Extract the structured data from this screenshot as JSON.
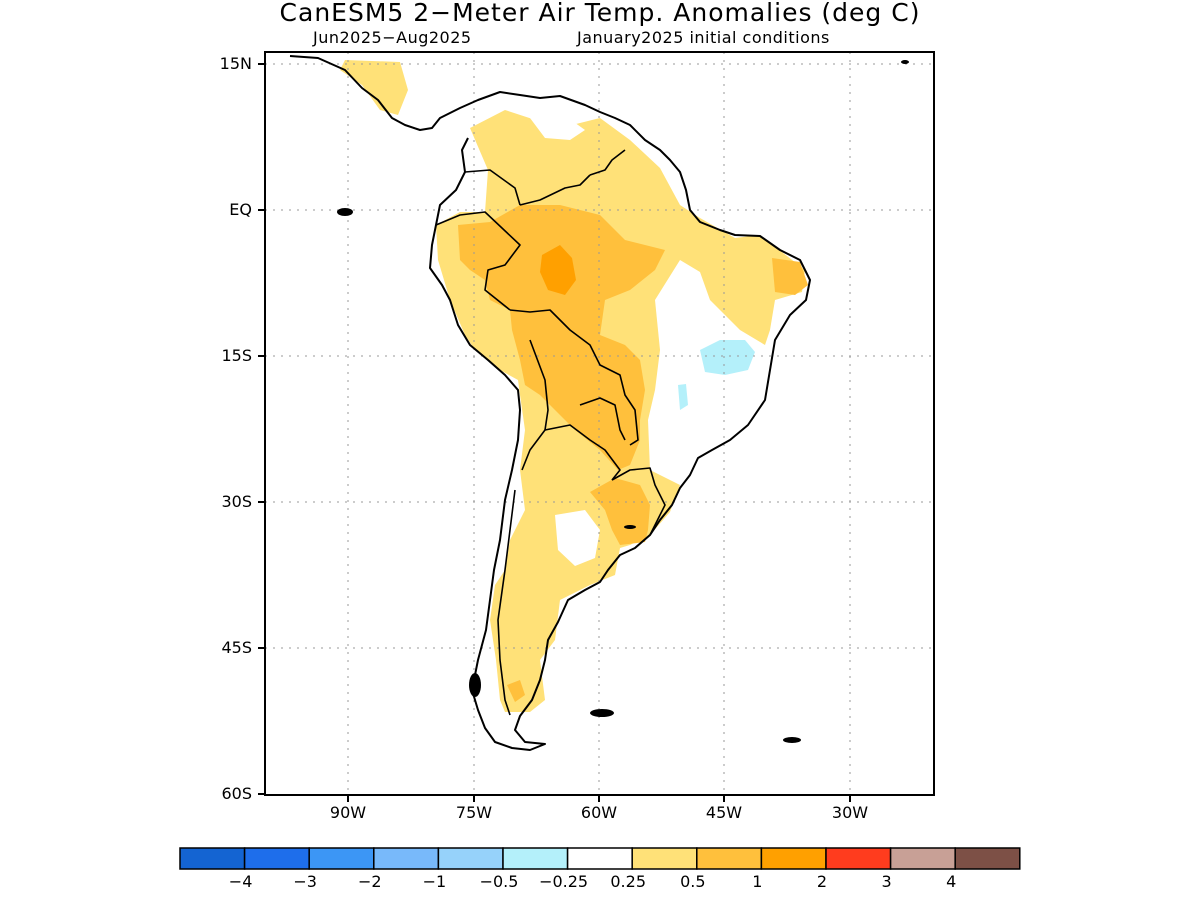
{
  "header": {
    "title": "CanESM5 2−Meter Air Temp. Anomalies (deg C)",
    "period": "Jun2025−Aug2025",
    "init": "January2025 initial conditions"
  },
  "map": {
    "lat_labels": [
      "15N",
      "EQ",
      "15S",
      "30S",
      "45S",
      "60S"
    ],
    "lon_labels": [
      "90W",
      "75W",
      "60W",
      "45W",
      "30W"
    ],
    "extent": {
      "lon": [
        -100,
        -20
      ],
      "lat": [
        -60,
        16
      ]
    },
    "grid": "dotted",
    "regions": [
      {
        "area": "Amazon basin / Bolivia",
        "class": "1 to 2"
      },
      {
        "area": "Northwest South America, Andes, Argentina",
        "class": "0.25 to 0.5 / 0.5 to 1"
      },
      {
        "area": "Eastern Brazil",
        "class": "-0.25 to 0.25"
      },
      {
        "area": "Central-east Brazil",
        "class": "-0.5 to -0.25"
      },
      {
        "area": "Central Argentina",
        "class": "-0.25 to 0.25"
      }
    ]
  },
  "colorbar": {
    "labels": [
      "−4",
      "−3",
      "−2",
      "−1",
      "−0.5",
      "−0.25",
      "0.25",
      "0.5",
      "1",
      "2",
      "3",
      "4"
    ],
    "colors": [
      "#1464d2",
      "#1e6eeb",
      "#3c96f5",
      "#78b9fa",
      "#96d2fa",
      "#b4f0fa",
      "#ffffff",
      "#ffe178",
      "#ffc03c",
      "#ffa000",
      "#ff3c1e",
      "#c8a096",
      "#7d5046"
    ]
  },
  "chart_data": {
    "type": "heatmap",
    "title": "CanESM5 2−Meter Air Temp. Anomalies (deg C)",
    "x_ticks": [
      "90W",
      "75W",
      "60W",
      "45W",
      "30W"
    ],
    "y_ticks": [
      "15N",
      "EQ",
      "15S",
      "30S",
      "45S",
      "60S"
    ],
    "levels": [
      -4,
      -3,
      -2,
      -1,
      -0.5,
      -0.25,
      0.25,
      0.5,
      1,
      2,
      3,
      4
    ]
  }
}
